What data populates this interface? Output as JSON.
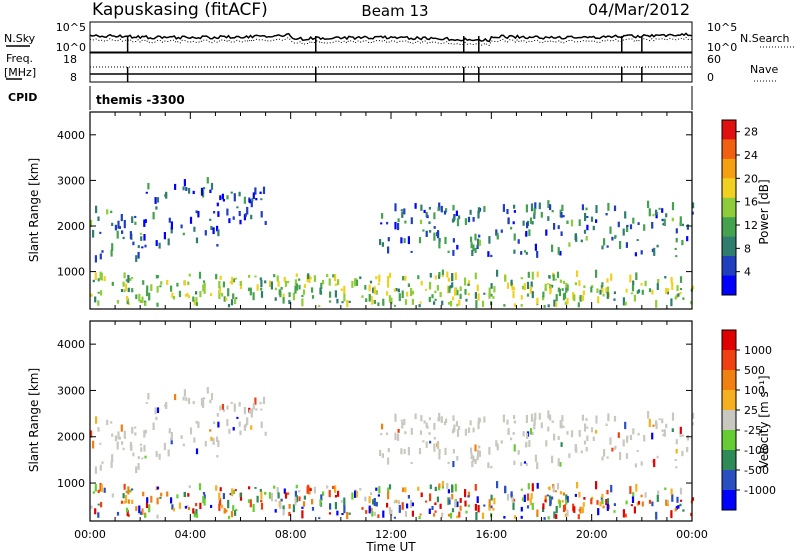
{
  "header": {
    "station": "Kapuskasing (fitACF)",
    "beam": "Beam 13",
    "date": "04/Mar/2012"
  },
  "top_panels": {
    "nsky_label": "N.Sky",
    "nsearch_label": "N.Search",
    "noise_ticks_left": [
      "10^5",
      "10^0"
    ],
    "noise_ticks_right": [
      "10^5",
      "10^0"
    ],
    "freq_label": "Freq.",
    "freq_unit": "[MHz]",
    "freq_ticks": [
      "18",
      "8"
    ],
    "nave_label": "Nave",
    "nave_ticks": [
      "60",
      "0"
    ],
    "cpid_label": "CPID",
    "cpid_value": "themis -3300"
  },
  "colors": {
    "power_scale": [
      "#0000ff",
      "#1f3fbf",
      "#2e7d6e",
      "#44a24f",
      "#8fcc3a",
      "#f0d020",
      "#f5a010",
      "#f06010",
      "#e01010"
    ],
    "velocity_scale": [
      "#0000ff",
      "#2a4fc0",
      "#2e8b57",
      "#66cc33",
      "#c8c8c0",
      "#f5b020",
      "#f08010",
      "#f04010",
      "#e00000"
    ]
  },
  "chart_data": [
    {
      "type": "heatmap",
      "name": "power",
      "xlabel": "Time UT",
      "ylabel": "Slant Range [km]",
      "xlim": [
        0,
        24
      ],
      "ylim": [
        180,
        4500
      ],
      "x_ticks": [
        "00:00",
        "04:00",
        "08:00",
        "12:00",
        "16:00",
        "20:00",
        "00:00"
      ],
      "y_ticks": [
        1000,
        2000,
        3000,
        4000
      ],
      "colorbar": {
        "label": "Power [dB]",
        "ticks": [
          "4",
          "8",
          "12",
          "16",
          "20",
          "24",
          "28"
        ],
        "range": [
          0,
          30
        ]
      },
      "bands": [
        {
          "from_hour": 0.0,
          "to_hour": 2.0,
          "range_km": [
            1200,
            2300
          ],
          "typical_power_db": 8
        },
        {
          "from_hour": 2.0,
          "to_hour": 5.3,
          "range_km": [
            1500,
            3000
          ],
          "typical_power_db": 6
        },
        {
          "from_hour": 5.3,
          "to_hour": 7.0,
          "range_km": [
            2000,
            2800
          ],
          "typical_power_db": 5
        },
        {
          "from_hour": 11.5,
          "to_hour": 24.0,
          "range_km": [
            1300,
            2400
          ],
          "typical_power_db": 8
        },
        {
          "from_hour": 0.0,
          "to_hour": 24.0,
          "range_km": [
            200,
            900
          ],
          "typical_power_db": 14
        }
      ]
    },
    {
      "type": "heatmap",
      "name": "velocity",
      "xlabel": "Time UT",
      "ylabel": "Slant Range [km]",
      "xlim": [
        0,
        24
      ],
      "ylim": [
        180,
        4500
      ],
      "x_ticks": [
        "00:00",
        "04:00",
        "08:00",
        "12:00",
        "16:00",
        "20:00",
        "00:00"
      ],
      "y_ticks": [
        1000,
        2000,
        3000,
        4000
      ],
      "colorbar": {
        "label": "Velocity [m s⁻¹]",
        "ticks": [
          "1000",
          "500",
          "100",
          "25",
          "-25",
          "-100",
          "-500",
          "-1000"
        ]
      }
    }
  ]
}
